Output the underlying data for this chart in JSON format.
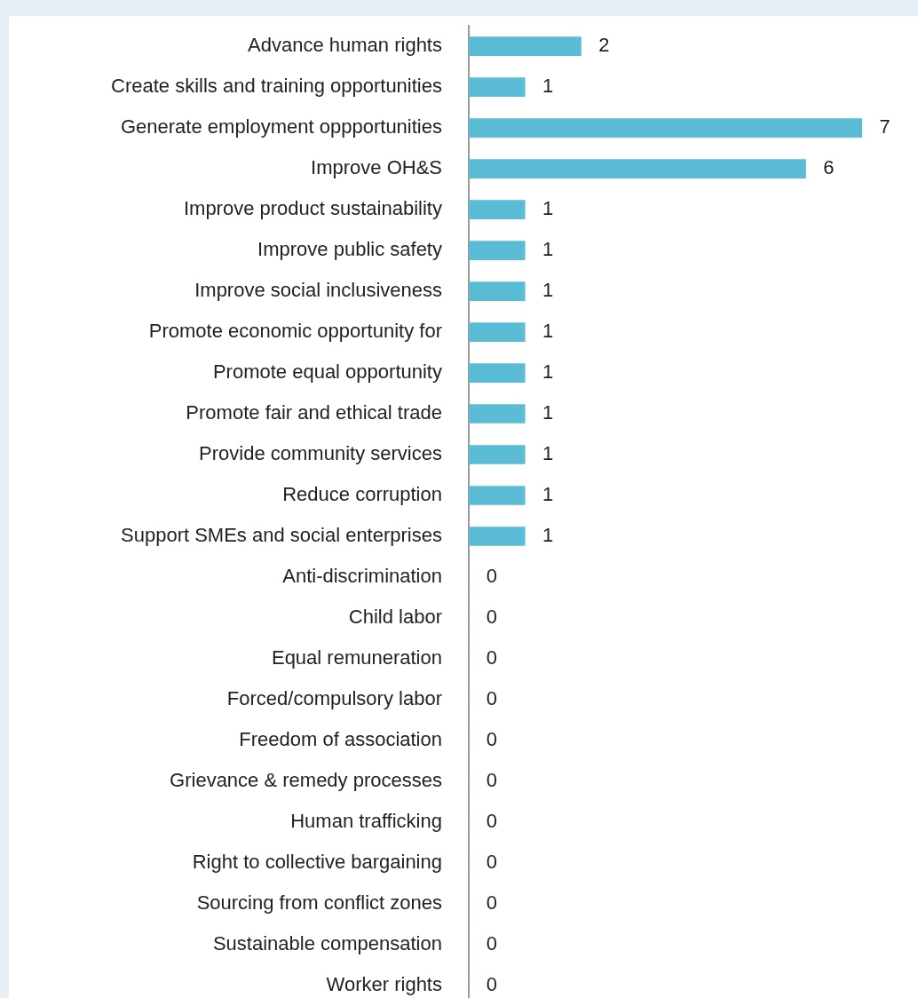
{
  "chart_data": {
    "type": "bar",
    "orientation": "horizontal",
    "categories": [
      "Advance human rights",
      "Create skills and training opportunities",
      "Generate employment oppportunities",
      "Improve OH&S",
      "Improve product sustainability",
      "Improve public safety",
      "Improve social inclusiveness",
      "Promote economic opportunity for",
      "Promote equal opportunity",
      "Promote fair and ethical trade",
      "Provide community services",
      "Reduce corruption",
      "Support SMEs and social enterprises",
      "Anti-discrimination",
      "Child labor",
      "Equal remuneration",
      "Forced/compulsory labor",
      "Freedom of association",
      "Grievance & remedy processes",
      "Human trafficking",
      "Right to collective bargaining",
      "Sourcing from conflict zones",
      "Sustainable compensation",
      "Worker rights"
    ],
    "values": [
      2,
      1,
      7,
      6,
      1,
      1,
      1,
      1,
      1,
      1,
      1,
      1,
      1,
      0,
      0,
      0,
      0,
      0,
      0,
      0,
      0,
      0,
      0,
      0
    ],
    "color": "#5bbcd6",
    "xlim": [
      0,
      8
    ],
    "data_labels": true,
    "tick_labels": "y"
  }
}
